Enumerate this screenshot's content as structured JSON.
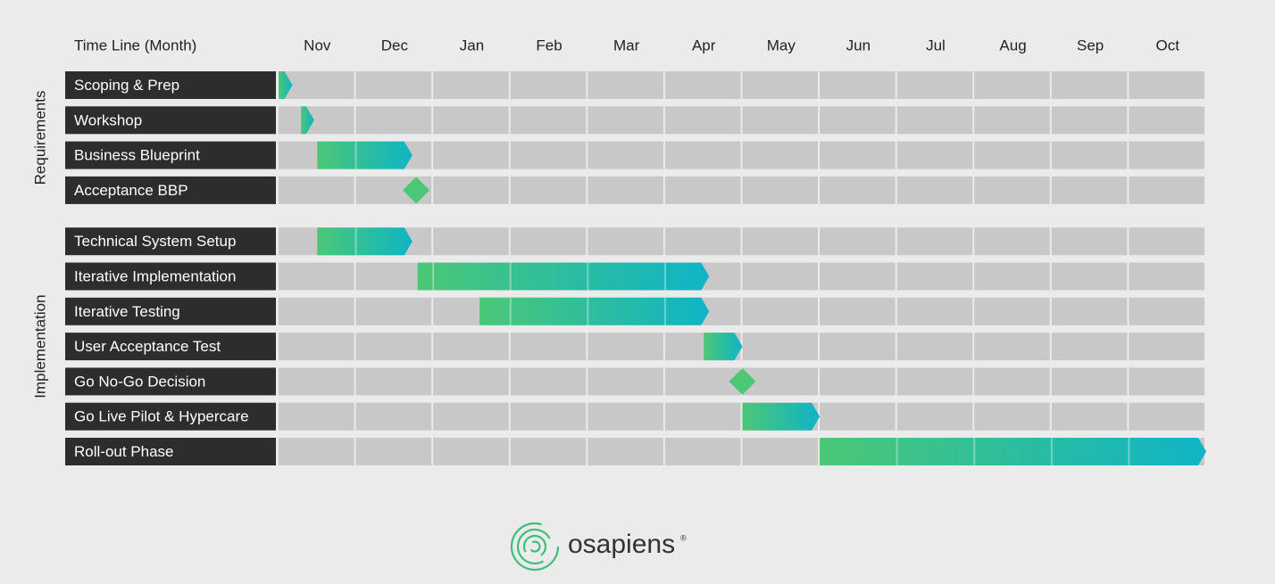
{
  "chart_data": {
    "type": "gantt",
    "title": "Time Line (Month)",
    "categories": [
      "Nov",
      "Dec",
      "Jan",
      "Feb",
      "Mar",
      "Apr",
      "May",
      "Jun",
      "Jul",
      "Aug",
      "Sep",
      "Oct"
    ],
    "xlim": [
      0,
      12
    ],
    "colors": [
      "#4cc776",
      "#0fb4c6"
    ],
    "groups": [
      {
        "name": "Requirements",
        "tasks": [
          {
            "name": "Scoping & Prep",
            "start": 0,
            "end": 0.18
          },
          {
            "name": "Workshop",
            "start": 0.29,
            "end": 0.46
          },
          {
            "name": "Business Blueprint",
            "start": 0.5,
            "end": 1.73
          },
          {
            "name": "Acceptance BBP",
            "milestone": 1.78
          }
        ]
      },
      {
        "name": "Implementation",
        "tasks": [
          {
            "name": "Technical System Setup",
            "start": 0.5,
            "end": 1.73
          },
          {
            "name": "Iterative Implementation",
            "start": 1.8,
            "end": 5.57
          },
          {
            "name": "Iterative Testing",
            "start": 2.6,
            "end": 5.57
          },
          {
            "name": "User Acceptance Test",
            "start": 5.5,
            "end": 6.0
          },
          {
            "name": "Go No-Go Decision",
            "milestone": 6.0
          },
          {
            "name": "Go Live Pilot & Hypercare",
            "start": 6.0,
            "end": 7.0
          },
          {
            "name": "Roll-out Phase",
            "start": 7.0,
            "end": 12.0
          }
        ]
      }
    ]
  },
  "brand": {
    "name": "osapiens",
    "mark": "®"
  }
}
